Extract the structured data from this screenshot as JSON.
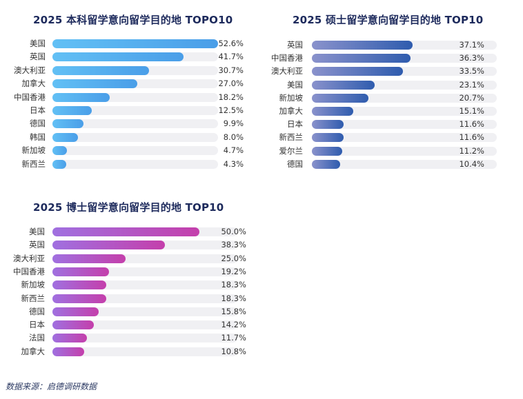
{
  "chart_data": [
    {
      "type": "bar",
      "orientation": "horizontal",
      "title": "2025 本科留学意向留学目的地 TOPO10",
      "categories": [
        "美国",
        "英国",
        "澳大利亚",
        "加拿大",
        "中国香港",
        "日本",
        "德国",
        "韩国",
        "新加坡",
        "新西兰"
      ],
      "values": [
        52.6,
        41.7,
        30.7,
        27.0,
        18.2,
        12.5,
        9.9,
        8.0,
        4.7,
        4.3
      ],
      "value_labels": [
        "52.6%",
        "41.7%",
        "30.7%",
        "27.0%",
        "18.2%",
        "12.5%",
        "9.9%",
        "8.0%",
        "4.7%",
        "4.3%"
      ],
      "xlim": [
        0,
        52.6
      ],
      "color": "#4a9ee8"
    },
    {
      "type": "bar",
      "orientation": "horizontal",
      "title": "2025 硕士留学意向留学目的地 TOP10",
      "categories": [
        "英国",
        "中国香港",
        "澳大利亚",
        "美国",
        "新加坡",
        "加拿大",
        "日本",
        "新西兰",
        "爱尔兰",
        "德国"
      ],
      "values": [
        37.1,
        36.3,
        33.5,
        23.1,
        20.7,
        15.1,
        11.6,
        11.6,
        11.2,
        10.4
      ],
      "value_labels": [
        "37.1%",
        "36.3%",
        "33.5%",
        "23.1%",
        "20.7%",
        "15.1%",
        "11.6%",
        "11.6%",
        "11.2%",
        "10.4%"
      ],
      "xlim": [
        0,
        68
      ],
      "color": "#2f5cae"
    },
    {
      "type": "bar",
      "orientation": "horizontal",
      "title": "2025 博士留学意向留学目的地 TOP10",
      "categories": [
        "美国",
        "英国",
        "澳大利亚",
        "中国香港",
        "新加坡",
        "新西兰",
        "德国",
        "日本",
        "法国",
        "加拿大"
      ],
      "values": [
        50.0,
        38.3,
        25.0,
        19.2,
        18.3,
        18.3,
        15.8,
        14.2,
        11.7,
        10.8
      ],
      "value_labels": [
        "50.0%",
        "38.3%",
        "25.0%",
        "19.2%",
        "18.3%",
        "18.3%",
        "15.8%",
        "14.2%",
        "11.7%",
        "10.8%"
      ],
      "xlim": [
        0,
        63
      ],
      "color": "#c43fab"
    }
  ],
  "source": "数据来源：启德调研数据"
}
